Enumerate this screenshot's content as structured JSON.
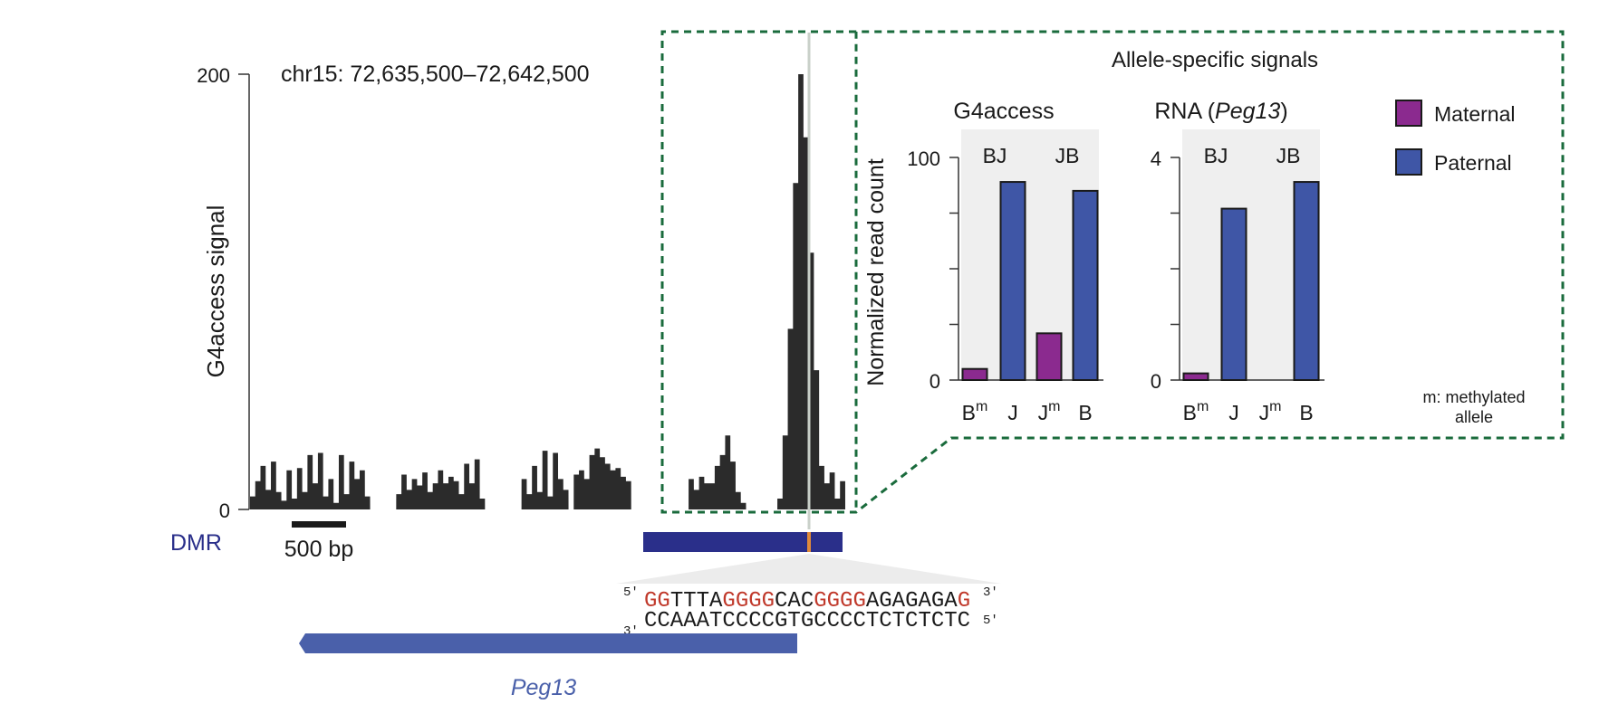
{
  "colors": {
    "signal": "#2b2b2b",
    "maternal": "#8b2a8f",
    "paternal": "#3f56a6",
    "dmr": "#2a2f8a",
    "peg13": "#4a60aa",
    "highlight": "#e08a3a",
    "box": "#1a6b3c",
    "g4_red": "#c0392b",
    "cell_bg": "#efefef"
  },
  "track": {
    "region": "chr15: 72,635,500–72,642,500",
    "ylabel": "G4access signal",
    "y_ticks": [
      "200",
      "0"
    ],
    "ylim": [
      0,
      200
    ],
    "scalebar_label": "500 bp",
    "dmr_label": "DMR",
    "gene_label": "Peg13"
  },
  "sequence": {
    "top_prefix": "5′",
    "top": [
      {
        "t": "GG",
        "red": true
      },
      {
        "t": "TTTA",
        "red": false
      },
      {
        "t": "GGGG",
        "red": true
      },
      {
        "t": "CAC",
        "red": false
      },
      {
        "t": "GGGG",
        "red": true
      },
      {
        "t": "AGAGAGA",
        "red": false
      },
      {
        "t": "G",
        "red": true
      }
    ],
    "top_suffix": "3′",
    "bottom_prefix": "3′",
    "bottom": "CCAAATCCCCGTGCCCCTCTCTCTC",
    "bottom_suffix": "5′"
  },
  "inset": {
    "title": "Allele-specific signals",
    "ylabel": "Normalized read count",
    "footnote_line1": "m: methylated",
    "footnote_line2": "allele",
    "legend": [
      {
        "label": "Maternal",
        "color": "#8b2a8f"
      },
      {
        "label": "Paternal",
        "color": "#3f56a6"
      }
    ]
  },
  "chart_data": [
    {
      "type": "area",
      "ylabel": "G4access signal",
      "ylim": [
        0,
        200
      ],
      "x": [
        0,
        10,
        20,
        30,
        40,
        50,
        60,
        70,
        80,
        90,
        100,
        110,
        120,
        130,
        140,
        150,
        160,
        170,
        180,
        190,
        200,
        210,
        220,
        230,
        240,
        250,
        260,
        270,
        280,
        290,
        300,
        310,
        320,
        330,
        340,
        350,
        360,
        370,
        380,
        390,
        400,
        410,
        420,
        430,
        440,
        450,
        460,
        470,
        480,
        490,
        500,
        510,
        520,
        530,
        540,
        550,
        560,
        570,
        580,
        590
      ],
      "values": [
        6,
        13,
        20,
        9,
        22,
        8,
        4,
        18,
        5,
        19,
        8,
        25,
        12,
        26,
        6,
        14,
        3,
        25,
        7,
        22,
        14,
        18,
        6,
        0,
        0,
        0,
        0,
        0,
        7,
        16,
        9,
        14,
        11,
        17,
        8,
        12,
        18,
        12,
        15,
        13,
        7,
        21,
        12,
        23,
        5,
        0,
        0,
        0,
        0,
        0,
        0,
        0,
        14,
        7,
        20,
        8,
        27,
        6,
        26,
        14
      ],
      "series": [
        {
          "name": "",
          "x": [
            600,
            610,
            620,
            630,
            640,
            650,
            660,
            670,
            680,
            690,
            700,
            710,
            720,
            730,
            740,
            750,
            760,
            770,
            780,
            790,
            800,
            810,
            820,
            830,
            840,
            850,
            860,
            870,
            880,
            890,
            900,
            910,
            920,
            930,
            940,
            950,
            960,
            970,
            980,
            990,
            1000,
            1010,
            1020,
            1030,
            1040,
            1050,
            1060,
            1070,
            1080,
            1090,
            1100,
            1110,
            1120,
            1130,
            1140
          ],
          "values": [
            9,
            0,
            16,
            18,
            14,
            25,
            28,
            24,
            21,
            18,
            19,
            15,
            13,
            0,
            0,
            0,
            0,
            0,
            0,
            0,
            0,
            0,
            0,
            0,
            14,
            9,
            15,
            12,
            12,
            20,
            25,
            34,
            22,
            8,
            3,
            0,
            0,
            0,
            0,
            0,
            0,
            5,
            34,
            83,
            150,
            200,
            171,
            118,
            64,
            20,
            12,
            17,
            5,
            13,
            0
          ]
        }
      ]
    },
    {
      "type": "bar",
      "title": "G4access",
      "groups": [
        "BJ",
        "JB"
      ],
      "categories": [
        "Bm",
        "J",
        "Jm",
        "B"
      ],
      "ylim": [
        0,
        100
      ],
      "y_ticks": [
        "100",
        "0"
      ],
      "series": [
        {
          "name": "Maternal",
          "values": [
            5,
            null,
            21,
            null
          ]
        },
        {
          "name": "Paternal",
          "values": [
            null,
            89,
            null,
            85
          ]
        }
      ]
    },
    {
      "type": "bar",
      "title_prefix": "RNA (",
      "title_gene": "Peg13",
      "title_suffix": ")",
      "groups": [
        "BJ",
        "JB"
      ],
      "categories": [
        "Bm",
        "J",
        "Jm",
        "B"
      ],
      "ylim": [
        0,
        4
      ],
      "y_ticks": [
        "4",
        "0"
      ],
      "series": [
        {
          "name": "Maternal",
          "values": [
            0.12,
            null,
            0,
            null
          ]
        },
        {
          "name": "Paternal",
          "values": [
            null,
            3.08,
            null,
            3.56
          ]
        }
      ]
    }
  ]
}
